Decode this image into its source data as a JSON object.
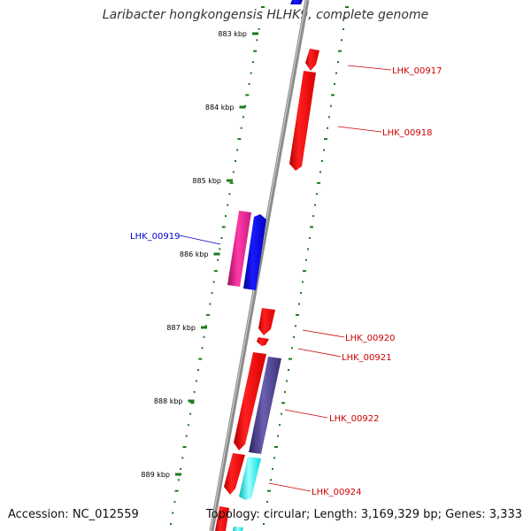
{
  "title": "Laribacter hongkongensis HLHK9, complete genome",
  "footer": {
    "accession": "Accession: NC_012559",
    "summary": "Topology: circular; Length: 3,169,329 bp; Genes: 3,333"
  },
  "scale_ticks": [
    "883 kbp",
    "884 kbp",
    "885 kbp",
    "886 kbp",
    "887 kbp",
    "888 kbp",
    "889 kbp"
  ],
  "genes": [
    {
      "label": "LHK_00917",
      "color": "#cc0000"
    },
    {
      "label": "LHK_00918",
      "color": "#cc0000"
    },
    {
      "label": "LHK_00919",
      "color": "#0000cc"
    },
    {
      "label": "LHK_00920",
      "color": "#cc0000"
    },
    {
      "label": "LHK_00921",
      "color": "#cc0000"
    },
    {
      "label": "LHK_00922",
      "color": "#cc0000"
    },
    {
      "label": "LHK_00924",
      "color": "#cc0000"
    }
  ],
  "colors": {
    "backbone": "#8c8c8c",
    "gc_ticks": "#1a7a1a",
    "forward_cds": "#ff0000",
    "reverse_cds": "#0000ff",
    "magenta_cds": "#e0208c",
    "purple_cds": "#4a3f8c",
    "cyan_cds": "#00ffff"
  }
}
